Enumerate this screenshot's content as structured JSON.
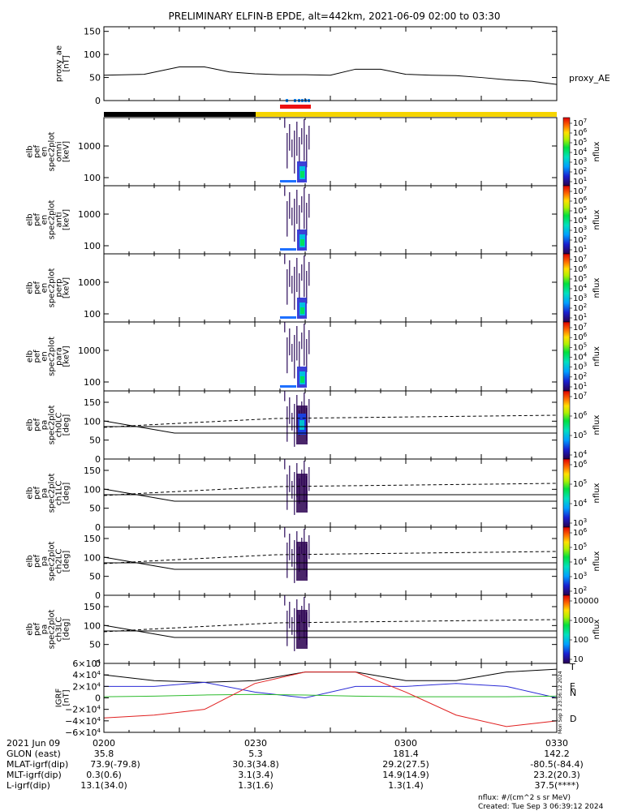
{
  "title": "PRELIMINARY ELFIN-B EPDE, alt=442km, 2021-06-09 02:00 to 03:30",
  "colors": {
    "black_bar": "#000000",
    "yellow_bar": "#f5d400",
    "red_bar": "#ee1111",
    "blue_marks": "#1e90ff",
    "grf_total": "#000000",
    "grf_n": "#2b2bd6",
    "grf_e": "#2dbb2d",
    "grf_d": "#e02020"
  },
  "chart_data": [
    {
      "type": "line",
      "panel": "proxy_ae",
      "ylabel_lines": [
        "proxy_ae",
        "[nT]"
      ],
      "legend": "proxy_AE",
      "yticks": [
        "150",
        "100",
        "50",
        "0"
      ],
      "ylim": [
        0,
        160
      ],
      "x": [
        0,
        8,
        15,
        20,
        25,
        30,
        35,
        40,
        45,
        50,
        55,
        60,
        65,
        70,
        75,
        80,
        85,
        90
      ],
      "values": [
        55,
        57,
        73,
        73,
        62,
        58,
        56,
        56,
        55,
        68,
        68,
        57,
        55,
        54,
        50,
        45,
        42,
        35
      ]
    },
    {
      "type": "heatmap",
      "panel": "omni",
      "ylabel_lines": [
        "elb",
        "pef",
        "en",
        "spec2plot",
        "omni",
        "[keV]"
      ],
      "yticks": [
        "1000",
        "100"
      ],
      "zlabel": "nflux",
      "cbar_ticks": [
        "10^7",
        "10^6",
        "10^5",
        "10^4",
        "10^3",
        "10^2",
        "10^1"
      ]
    },
    {
      "type": "heatmap",
      "panel": "anti",
      "ylabel_lines": [
        "elb",
        "pef",
        "en",
        "spec2plot",
        "anti",
        "[keV]"
      ],
      "yticks": [
        "1000",
        "100"
      ],
      "zlabel": "nflux",
      "cbar_ticks": [
        "10^7",
        "10^6",
        "10^5",
        "10^4",
        "10^3",
        "10^2",
        "10^1"
      ]
    },
    {
      "type": "heatmap",
      "panel": "perp",
      "ylabel_lines": [
        "elb",
        "pef",
        "en",
        "spec2plot",
        "perp",
        "[keV]"
      ],
      "yticks": [
        "1000",
        "100"
      ],
      "zlabel": "nflux",
      "cbar_ticks": [
        "10^7",
        "10^6",
        "10^5",
        "10^4",
        "10^3",
        "10^2",
        "10^1"
      ]
    },
    {
      "type": "heatmap",
      "panel": "para",
      "ylabel_lines": [
        "elb",
        "pef",
        "en",
        "spec2plot",
        "para",
        "[keV]"
      ],
      "yticks": [
        "1000",
        "100"
      ],
      "zlabel": "nflux",
      "cbar_ticks": [
        "10^7",
        "10^6",
        "10^5",
        "10^4",
        "10^3",
        "10^2",
        "10^1"
      ]
    },
    {
      "type": "heatmap",
      "panel": "ch0LC",
      "ylabel_lines": [
        "elb",
        "pef",
        "pa",
        "spec2plot",
        "ch0LC",
        "[deg]"
      ],
      "yticks": [
        "150",
        "100",
        "50",
        "0"
      ],
      "zlabel": "nflux",
      "cbar_ticks": [
        "10^7",
        "10^6",
        "10^5",
        "10^4"
      ]
    },
    {
      "type": "heatmap",
      "panel": "ch1LC",
      "ylabel_lines": [
        "elb",
        "pef",
        "pa",
        "spec2plot",
        "ch1LC",
        "[deg]"
      ],
      "yticks": [
        "150",
        "100",
        "50",
        "0"
      ],
      "zlabel": "nflux",
      "cbar_ticks": [
        "10^6",
        "10^5",
        "10^4",
        "10^3"
      ]
    },
    {
      "type": "heatmap",
      "panel": "ch2LC",
      "ylabel_lines": [
        "elb",
        "pef",
        "pa",
        "spec2plot",
        "ch2LC",
        "[deg]"
      ],
      "yticks": [
        "150",
        "100",
        "50",
        "0"
      ],
      "zlabel": "nflux",
      "cbar_ticks": [
        "10^6",
        "10^5",
        "10^4",
        "10^3",
        "10^2"
      ]
    },
    {
      "type": "heatmap",
      "panel": "ch3LC",
      "ylabel_lines": [
        "elb",
        "pef",
        "pa",
        "spec2plot",
        "ch3LC",
        "[deg]"
      ],
      "yticks": [
        "150",
        "100",
        "50",
        "0"
      ],
      "zlabel": "nflux",
      "cbar_ticks": [
        "10000",
        "1000",
        "100",
        "10"
      ]
    },
    {
      "type": "line",
      "panel": "IGRF",
      "ylabel_lines": [
        "IGRF",
        "[nT]"
      ],
      "yticks": [
        "6×10^4",
        "4×10^4",
        "2×10^4",
        "0",
        "−2×10^4",
        "−4×10^4",
        "−6×10^4"
      ],
      "ylim": [
        -60000,
        60000
      ],
      "legend": [
        "T",
        "E",
        "N",
        "D"
      ],
      "x": [
        0,
        10,
        20,
        30,
        40,
        50,
        60,
        70,
        80,
        90
      ],
      "series": [
        {
          "name": "T",
          "values": [
            40000,
            30000,
            27000,
            30000,
            45000,
            45000,
            30000,
            30000,
            45000,
            50000
          ]
        },
        {
          "name": "N",
          "values": [
            20000,
            20000,
            27000,
            10000,
            0,
            20000,
            20000,
            25000,
            20000,
            0
          ]
        },
        {
          "name": "E",
          "values": [
            2000,
            3000,
            5000,
            6000,
            5000,
            3000,
            2000,
            2000,
            2000,
            3000
          ]
        },
        {
          "name": "D",
          "values": [
            -35000,
            -30000,
            -20000,
            25000,
            45000,
            45000,
            10000,
            -30000,
            -50000,
            -40000
          ]
        }
      ]
    }
  ],
  "ylabel_exps": {
    "igrf_pos": "4",
    "igrf_neg": "4"
  },
  "footer": {
    "date": "2021 Jun 09",
    "times": [
      "0200",
      "0230",
      "0300",
      "0330"
    ],
    "rows": [
      {
        "label": "GLON (east)",
        "values": [
          "35.8",
          "5.3",
          "181.4",
          "142.2"
        ]
      },
      {
        "label": "MLAT-igrf(dip)",
        "values": [
          "73.9(-79.8)",
          "30.3(34.8)",
          "29.2(27.5)",
          "-80.5(-84.4)"
        ]
      },
      {
        "label": "MLT-igrf(dip)",
        "values": [
          "0.3(0.6)",
          "3.1(3.4)",
          "14.9(14.9)",
          "23.2(20.3)"
        ]
      },
      {
        "label": "L-igrf(dip)",
        "values": [
          "13.1(34.0)",
          "1.3(1.6)",
          "1.3(1.4)",
          "37.5(****)"
        ]
      }
    ],
    "units_note": "nflux: #/(cm^2 s sr MeV)",
    "created": "Created: Tue Sep  3 06:39:12 2024",
    "side_stamp": "Mon Sep  3 23:36:12 2024"
  }
}
